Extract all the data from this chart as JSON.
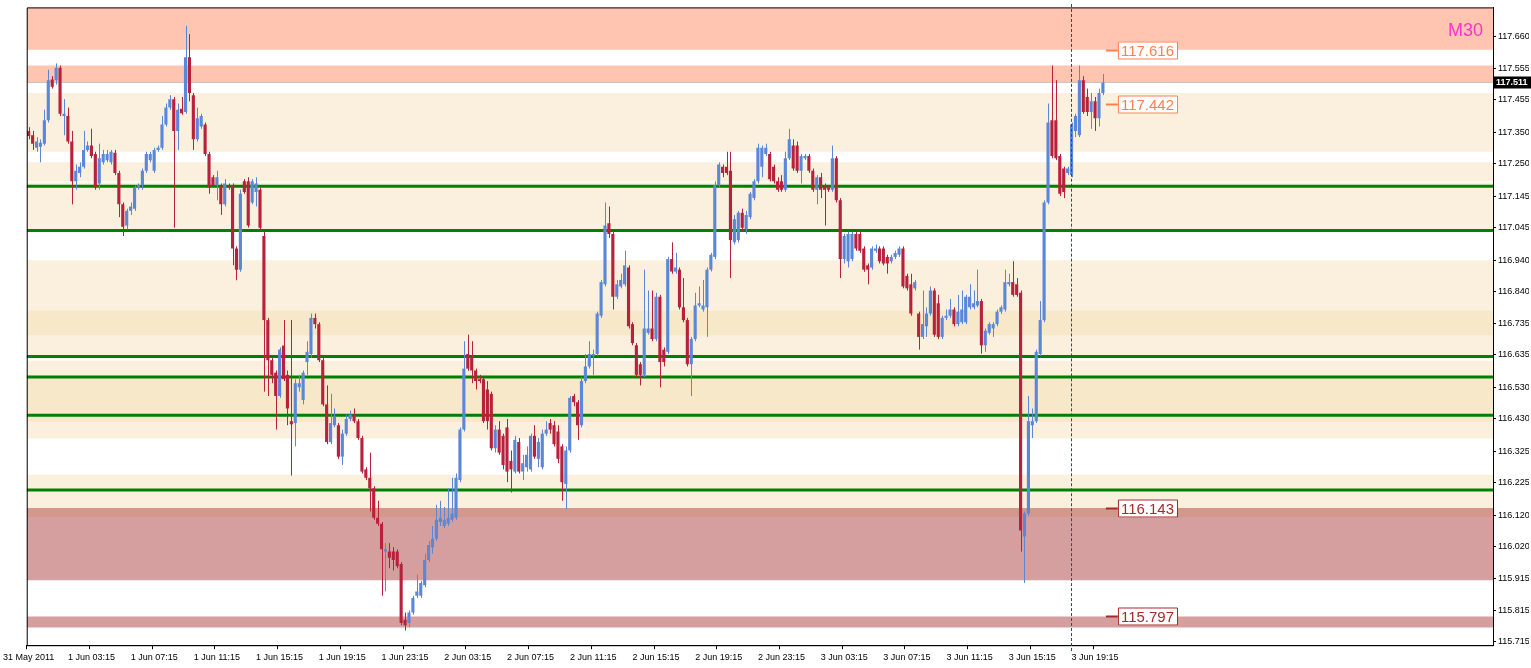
{
  "chart_data": {
    "type": "candlestick",
    "categories": [
      "31 May 2011",
      null,
      null,
      null,
      null,
      null,
      null,
      null,
      null,
      null,
      null,
      null,
      null,
      null,
      null,
      null,
      "1 Jun 03:15",
      null,
      null,
      null,
      null,
      null,
      null,
      null,
      null,
      null,
      null,
      null,
      null,
      null,
      null,
      null,
      "1 Jun 07:15",
      null,
      null,
      null,
      null,
      null,
      null,
      null,
      null,
      null,
      null,
      null,
      null,
      null,
      null,
      null,
      "1 Jun 11:15",
      null,
      null,
      null,
      null,
      null,
      null,
      null,
      null,
      null,
      null,
      null,
      null,
      null,
      null,
      null,
      "1 Jun 15:15",
      null,
      null,
      null,
      null,
      null,
      null,
      null,
      null,
      null,
      null,
      null,
      null,
      null,
      null,
      null,
      "1 Jun 19:15",
      null,
      null,
      null,
      null,
      null,
      null,
      null,
      null,
      null,
      null,
      null,
      null,
      null,
      null,
      null,
      "1 Jun 23:15",
      null,
      null,
      null,
      null,
      null,
      null,
      null,
      null,
      null,
      null,
      null,
      null,
      null,
      null,
      null,
      "2 Jun 03:15",
      null,
      null,
      null,
      null,
      null,
      null,
      null,
      null,
      null,
      null,
      null,
      null,
      null,
      null,
      null,
      "2 Jun 07:15",
      null,
      null,
      null,
      null,
      null,
      null,
      null,
      null,
      null,
      null,
      null,
      null,
      null,
      null,
      null,
      "2 Jun 11:15",
      null,
      null,
      null,
      null,
      null,
      null,
      null,
      null,
      null,
      null,
      null,
      null,
      null,
      null,
      null,
      "2 Jun 15:15",
      null,
      null,
      null,
      null,
      null,
      null,
      null,
      null,
      null,
      null,
      null,
      null,
      null,
      null,
      null,
      "2 Jun 19:15",
      null,
      null,
      null,
      null,
      null,
      null,
      null,
      null,
      null,
      null,
      null,
      null,
      null,
      null,
      null,
      "2 Jun 23:15",
      null,
      null,
      null,
      null,
      null,
      null,
      null,
      null,
      null,
      null,
      null,
      null,
      null,
      null,
      null,
      "3 Jun 03:15",
      null,
      null,
      null,
      null,
      null,
      null,
      null,
      null,
      null,
      null,
      null,
      null,
      null,
      null,
      null,
      "3 Jun 07:15",
      null,
      null,
      null,
      null,
      null,
      null,
      null,
      null,
      null,
      null,
      null,
      null,
      null,
      null,
      null,
      "3 Jun 11:15",
      null,
      null,
      null,
      null,
      null,
      null,
      null,
      null,
      null,
      null,
      null,
      null,
      null,
      null,
      null,
      "3 Jun 15:15",
      null,
      null,
      null,
      null,
      null,
      null,
      null,
      null,
      null,
      null,
      null,
      null,
      null,
      null,
      null,
      "3 Jun 19:15",
      null,
      null,
      null,
      null,
      null,
      null,
      null,
      null,
      null,
      null,
      null,
      null,
      null,
      null,
      null,
      null,
      null,
      null,
      null,
      null,
      null,
      null,
      null,
      null,
      null,
      null,
      null,
      null,
      null,
      null,
      null,
      null,
      null,
      null,
      null,
      null,
      null,
      null,
      null,
      null,
      null,
      null,
      null,
      null,
      null,
      null,
      null,
      null,
      null,
      null,
      null,
      null,
      null,
      null,
      null,
      null,
      null,
      null,
      null,
      null,
      null,
      null,
      null,
      null,
      null,
      null,
      null,
      null,
      null,
      null,
      null,
      null,
      null,
      null,
      null,
      null,
      null,
      null,
      null,
      null,
      null,
      null,
      null,
      null,
      null,
      null,
      null,
      null,
      null,
      null,
      null,
      null,
      null,
      null,
      null,
      null,
      null,
      null,
      null,
      null,
      null
    ],
    "ohlc": [
      [
        117.355,
        117.367,
        117.328,
        117.339
      ],
      [
        117.341,
        117.355,
        117.294,
        117.314
      ],
      [
        117.301,
        117.335,
        117.288,
        117.321
      ],
      [
        117.304,
        117.328,
        117.254,
        117.317
      ],
      [
        117.314,
        117.423,
        117.308,
        117.389
      ],
      [
        117.389,
        117.552,
        117.382,
        117.518
      ],
      [
        117.52,
        117.531,
        117.491,
        117.497
      ],
      [
        117.518,
        117.572,
        117.504,
        117.558
      ],
      [
        117.558,
        117.565,
        117.403,
        117.41
      ],
      [
        117.403,
        117.457,
        117.341,
        117.41
      ],
      [
        117.403,
        117.43,
        117.314,
        117.321
      ],
      [
        117.321,
        117.355,
        117.119,
        117.193
      ],
      [
        117.193,
        117.247,
        117.166,
        117.227
      ],
      [
        117.22,
        117.254,
        117.206,
        117.24
      ],
      [
        117.24,
        117.355,
        117.234,
        117.294
      ],
      [
        117.294,
        117.321,
        117.288,
        117.308
      ],
      [
        117.308,
        117.362,
        117.267,
        117.274
      ],
      [
        117.281,
        117.288,
        117.166,
        117.173
      ],
      [
        117.186,
        117.314,
        117.166,
        117.267
      ],
      [
        117.254,
        117.294,
        117.247,
        117.281
      ],
      [
        117.261,
        117.294,
        117.254,
        117.281
      ],
      [
        117.254,
        117.294,
        117.247,
        117.288
      ],
      [
        117.285,
        117.294,
        117.213,
        117.22
      ],
      [
        117.22,
        117.227,
        117.078,
        117.119
      ],
      [
        117.119,
        117.125,
        117.017,
        117.047
      ],
      [
        117.051,
        117.105,
        117.038,
        117.098
      ],
      [
        117.098,
        117.125,
        117.085,
        117.112
      ],
      [
        117.105,
        117.18,
        117.098,
        117.173
      ],
      [
        117.173,
        117.186,
        117.166,
        117.18
      ],
      [
        117.18,
        117.234,
        117.166,
        117.227
      ],
      [
        117.227,
        117.288,
        117.22,
        117.281
      ],
      [
        117.261,
        117.288,
        117.254,
        117.281
      ],
      [
        117.227,
        117.301,
        117.22,
        117.294
      ],
      [
        117.294,
        117.308,
        117.288,
        117.301
      ],
      [
        117.301,
        117.403,
        117.294,
        117.376
      ],
      [
        117.376,
        117.443,
        117.369,
        117.43
      ],
      [
        117.43,
        117.47,
        117.423,
        117.457
      ],
      [
        117.457,
        117.464,
        117.044,
        117.355
      ],
      [
        117.355,
        117.443,
        117.294,
        117.423
      ],
      [
        117.426,
        117.464,
        117.407,
        117.412
      ],
      [
        117.416,
        117.693,
        117.41,
        117.592
      ],
      [
        117.592,
        117.666,
        117.45,
        117.477
      ],
      [
        117.47,
        117.477,
        117.294,
        117.328
      ],
      [
        117.328,
        117.43,
        117.321,
        117.396
      ],
      [
        117.369,
        117.41,
        117.362,
        117.403
      ],
      [
        117.376,
        117.382,
        117.274,
        117.281
      ],
      [
        117.281,
        117.288,
        117.153,
        117.173
      ],
      [
        117.206,
        117.213,
        117.173,
        117.18
      ],
      [
        117.18,
        117.227,
        117.132,
        117.206
      ],
      [
        117.18,
        117.186,
        117.085,
        117.119
      ],
      [
        117.119,
        117.2,
        117.112,
        117.186
      ],
      [
        117.18,
        117.186,
        117.166,
        117.173
      ],
      [
        117.18,
        117.186,
        116.923,
        116.977
      ],
      [
        116.977,
        116.984,
        116.875,
        116.909
      ],
      [
        116.909,
        117.166,
        116.902,
        117.153
      ],
      [
        117.193,
        117.2,
        117.153,
        117.159
      ],
      [
        117.193,
        117.206,
        117.044,
        117.051
      ],
      [
        117.125,
        117.2,
        117.119,
        117.193
      ],
      [
        117.159,
        117.206,
        117.112,
        117.186
      ],
      [
        117.166,
        117.173,
        117.038,
        117.044
      ],
      [
        117.017,
        117.031,
        116.517,
        116.747
      ],
      [
        116.747,
        116.754,
        116.503,
        116.618
      ],
      [
        116.618,
        116.625,
        116.544,
        116.571
      ],
      [
        116.578,
        116.585,
        116.395,
        116.503
      ],
      [
        116.503,
        116.659,
        116.497,
        116.652
      ],
      [
        116.665,
        116.747,
        116.551,
        116.557
      ],
      [
        116.571,
        116.585,
        116.409,
        116.463
      ],
      [
        116.422,
        116.747,
        116.247,
        116.412
      ],
      [
        116.416,
        116.557,
        116.341,
        116.544
      ],
      [
        116.531,
        116.571,
        116.517,
        116.544
      ],
      [
        116.49,
        116.585,
        116.476,
        116.578
      ],
      [
        116.612,
        116.679,
        116.571,
        116.645
      ],
      [
        116.638,
        116.768,
        116.625,
        116.754
      ],
      [
        116.754,
        116.768,
        116.72,
        116.734
      ],
      [
        116.734,
        116.74,
        116.612,
        116.618
      ],
      [
        116.618,
        116.625,
        116.47,
        116.476
      ],
      [
        116.476,
        116.537,
        116.348,
        116.355
      ],
      [
        116.355,
        116.51,
        116.348,
        116.416
      ],
      [
        116.409,
        116.463,
        116.402,
        116.436
      ],
      [
        116.409,
        116.416,
        116.301,
        116.308
      ],
      [
        116.308,
        116.395,
        116.281,
        116.382
      ],
      [
        116.382,
        116.443,
        116.375,
        116.429
      ],
      [
        116.429,
        116.456,
        116.422,
        116.443
      ],
      [
        116.443,
        116.463,
        116.416,
        116.422
      ],
      [
        116.422,
        116.429,
        116.362,
        116.368
      ],
      [
        116.368,
        116.375,
        116.254,
        116.26
      ],
      [
        116.267,
        116.274,
        116.233,
        116.24
      ],
      [
        116.24,
        116.321,
        116.132,
        116.206
      ],
      [
        116.206,
        116.213,
        116.105,
        116.112
      ],
      [
        116.112,
        116.166,
        116.085,
        116.092
      ],
      [
        116.092,
        116.098,
        115.861,
        116.01
      ],
      [
        116.003,
        116.03,
        115.875,
        116.01
      ],
      [
        116.003,
        116.03,
        115.949,
        115.983
      ],
      [
        116.003,
        116.017,
        115.942,
        115.976
      ],
      [
        116.003,
        116.01,
        115.949,
        115.956
      ],
      [
        115.963,
        115.969,
        115.766,
        115.773
      ],
      [
        115.784,
        115.807,
        115.749,
        115.766
      ],
      [
        115.773,
        115.814,
        115.76,
        115.807
      ],
      [
        115.807,
        115.861,
        115.8,
        115.854
      ],
      [
        115.861,
        115.929,
        115.854,
        115.875
      ],
      [
        115.861,
        115.909,
        115.854,
        115.902
      ],
      [
        115.895,
        115.996,
        115.888,
        115.976
      ],
      [
        115.976,
        116.037,
        115.969,
        116.024
      ],
      [
        116.017,
        116.085,
        115.996,
        116.044
      ],
      [
        116.044,
        116.153,
        116.037,
        116.105
      ],
      [
        116.098,
        116.166,
        116.085,
        116.112
      ],
      [
        116.085,
        116.146,
        116.078,
        116.105
      ],
      [
        116.092,
        116.206,
        116.085,
        116.112
      ],
      [
        116.105,
        116.24,
        116.098,
        116.125
      ],
      [
        116.112,
        116.254,
        116.105,
        116.24
      ],
      [
        116.233,
        116.402,
        116.226,
        116.395
      ],
      [
        116.395,
        116.679,
        116.389,
        116.591
      ],
      [
        116.638,
        116.7,
        116.584,
        116.591
      ],
      [
        116.625,
        116.679,
        116.544,
        116.585
      ],
      [
        116.585,
        116.591,
        116.524,
        116.551
      ],
      [
        116.557,
        116.571,
        116.544,
        116.551
      ],
      [
        116.557,
        116.564,
        116.416,
        116.422
      ],
      [
        116.524,
        116.551,
        116.395,
        116.422
      ],
      [
        116.51,
        116.517,
        116.328,
        116.335
      ],
      [
        116.335,
        116.409,
        116.321,
        116.395
      ],
      [
        116.395,
        116.422,
        116.314,
        116.321
      ],
      [
        116.375,
        116.382,
        116.267,
        116.281
      ],
      [
        116.402,
        116.429,
        116.226,
        116.26
      ],
      [
        116.294,
        116.328,
        116.193,
        116.267
      ],
      [
        116.26,
        116.375,
        116.254,
        116.362
      ],
      [
        116.355,
        116.368,
        116.254,
        116.26
      ],
      [
        116.26,
        116.314,
        116.233,
        116.287
      ],
      [
        116.274,
        116.341,
        116.26,
        116.314
      ],
      [
        116.267,
        116.382,
        116.26,
        116.375
      ],
      [
        116.375,
        116.409,
        116.301,
        116.308
      ],
      [
        116.301,
        116.368,
        116.274,
        116.355
      ],
      [
        116.274,
        116.395,
        116.267,
        116.382
      ],
      [
        116.382,
        116.422,
        116.375,
        116.395
      ],
      [
        116.416,
        116.429,
        116.382,
        116.395
      ],
      [
        116.409,
        116.422,
        116.341,
        116.348
      ],
      [
        116.389,
        116.409,
        116.287,
        116.301
      ],
      [
        116.341,
        116.348,
        116.166,
        116.226
      ],
      [
        116.22,
        116.341,
        116.139,
        116.328
      ],
      [
        116.328,
        116.503,
        116.321,
        116.497
      ],
      [
        116.503,
        116.51,
        116.47,
        116.483
      ],
      [
        116.483,
        116.49,
        116.362,
        116.409
      ],
      [
        116.409,
        116.564,
        116.402,
        116.551
      ],
      [
        116.551,
        116.638,
        116.544,
        116.598
      ],
      [
        116.598,
        116.679,
        116.591,
        116.638
      ],
      [
        116.632,
        116.652,
        116.571,
        116.638
      ],
      [
        116.638,
        116.774,
        116.632,
        116.768
      ],
      [
        116.761,
        116.876,
        116.754,
        116.869
      ],
      [
        116.862,
        117.125,
        116.855,
        117.051
      ],
      [
        117.058,
        117.112,
        117.011,
        117.024
      ],
      [
        117.024,
        117.031,
        116.781,
        116.822
      ],
      [
        116.822,
        116.876,
        116.815,
        116.862
      ],
      [
        116.855,
        116.896,
        116.849,
        116.876
      ],
      [
        116.862,
        116.97,
        116.855,
        116.923
      ],
      [
        116.916,
        116.923,
        116.72,
        116.727
      ],
      [
        116.734,
        116.74,
        116.666,
        116.673
      ],
      [
        116.666,
        116.673,
        116.564,
        116.571
      ],
      [
        116.605,
        116.612,
        116.537,
        116.571
      ],
      [
        116.571,
        116.909,
        116.564,
        116.72
      ],
      [
        116.706,
        116.842,
        116.7,
        116.72
      ],
      [
        116.72,
        116.842,
        116.679,
        116.686
      ],
      [
        116.686,
        116.835,
        116.679,
        116.822
      ],
      [
        116.822,
        116.828,
        116.531,
        116.612
      ],
      [
        116.652,
        116.659,
        116.598,
        116.612
      ],
      [
        116.645,
        116.95,
        116.638,
        116.943
      ],
      [
        116.943,
        116.997,
        116.896,
        116.903
      ],
      [
        116.903,
        116.963,
        116.896,
        116.916
      ],
      [
        116.909,
        116.916,
        116.781,
        116.788
      ],
      [
        116.788,
        116.882,
        116.74,
        116.747
      ],
      [
        116.747,
        116.754,
        116.598,
        116.605
      ],
      [
        116.605,
        116.693,
        116.503,
        116.686
      ],
      [
        116.686,
        116.835,
        116.679,
        116.794
      ],
      [
        116.794,
        116.855,
        116.788,
        116.801
      ],
      [
        116.781,
        116.876,
        116.774,
        116.794
      ],
      [
        116.788,
        116.916,
        116.693,
        116.909
      ],
      [
        116.909,
        116.963,
        116.903,
        116.957
      ],
      [
        116.95,
        117.193,
        116.943,
        117.18
      ],
      [
        117.18,
        117.254,
        117.173,
        117.247
      ],
      [
        117.24,
        117.247,
        117.206,
        117.22
      ],
      [
        117.24,
        117.288,
        117.213,
        117.22
      ],
      [
        117.227,
        117.288,
        116.882,
        117.004
      ],
      [
        116.997,
        117.085,
        116.99,
        117.071
      ],
      [
        117.004,
        117.098,
        116.997,
        117.092
      ],
      [
        117.092,
        117.105,
        117.031,
        117.044
      ],
      [
        117.038,
        117.098,
        117.024,
        117.085
      ],
      [
        117.078,
        117.159,
        117.071,
        117.153
      ],
      [
        117.139,
        117.2,
        117.132,
        117.193
      ],
      [
        117.193,
        117.314,
        117.186,
        117.301
      ],
      [
        117.24,
        117.308,
        117.206,
        117.301
      ],
      [
        117.281,
        117.314,
        117.274,
        117.301
      ],
      [
        117.281,
        117.288,
        117.193,
        117.2
      ],
      [
        117.24,
        117.247,
        117.186,
        117.193
      ],
      [
        117.193,
        117.206,
        117.159,
        117.166
      ],
      [
        117.193,
        117.213,
        117.159,
        117.166
      ],
      [
        117.166,
        117.288,
        117.159,
        117.267
      ],
      [
        117.267,
        117.362,
        117.261,
        117.328
      ],
      [
        117.308,
        117.328,
        117.227,
        117.234
      ],
      [
        117.308,
        117.321,
        117.22,
        117.227
      ],
      [
        117.227,
        117.281,
        117.186,
        117.274
      ],
      [
        117.267,
        117.281,
        117.261,
        117.274
      ],
      [
        117.274,
        117.281,
        117.22,
        117.227
      ],
      [
        117.227,
        117.234,
        117.159,
        117.166
      ],
      [
        117.166,
        117.213,
        117.119,
        117.206
      ],
      [
        117.206,
        117.22,
        117.139,
        117.166
      ],
      [
        117.18,
        117.186,
        117.051,
        117.166
      ],
      [
        117.173,
        117.18,
        117.159,
        117.166
      ],
      [
        117.166,
        117.308,
        117.159,
        117.267
      ],
      [
        117.267,
        117.274,
        117.125,
        117.132
      ],
      [
        117.132,
        117.139,
        116.882,
        116.943
      ],
      [
        116.943,
        117.024,
        116.929,
        117.017
      ],
      [
        116.936,
        117.031,
        116.916,
        117.024
      ],
      [
        116.943,
        117.031,
        116.936,
        117.024
      ],
      [
        117.024,
        117.031,
        116.97,
        116.977
      ],
      [
        117.024,
        117.031,
        116.963,
        116.97
      ],
      [
        116.977,
        116.984,
        116.902,
        116.909
      ],
      [
        116.923,
        116.929,
        116.862,
        116.909
      ],
      [
        116.916,
        116.984,
        116.909,
        116.977
      ],
      [
        116.97,
        116.99,
        116.963,
        116.977
      ],
      [
        116.977,
        116.984,
        116.929,
        116.936
      ],
      [
        116.977,
        116.984,
        116.923,
        116.929
      ],
      [
        116.95,
        116.957,
        116.896,
        116.929
      ],
      [
        116.936,
        116.957,
        116.929,
        116.95
      ],
      [
        116.95,
        116.97,
        116.943,
        116.963
      ],
      [
        116.957,
        116.984,
        116.95,
        116.977
      ],
      [
        116.977,
        116.984,
        116.849,
        116.855
      ],
      [
        116.889,
        116.896,
        116.842,
        116.849
      ],
      [
        116.862,
        116.896,
        116.761,
        116.768
      ],
      [
        116.849,
        116.876,
        116.842,
        116.869
      ],
      [
        116.768,
        116.774,
        116.652,
        116.693
      ],
      [
        116.693,
        116.842,
        116.686,
        116.734
      ],
      [
        116.727,
        116.788,
        116.693,
        116.768
      ],
      [
        116.768,
        116.855,
        116.761,
        116.842
      ],
      [
        116.842,
        116.849,
        116.693,
        116.7
      ],
      [
        116.801,
        116.828,
        116.686,
        116.693
      ],
      [
        116.693,
        116.761,
        116.686,
        116.754
      ],
      [
        116.754,
        116.781,
        116.747,
        116.761
      ],
      [
        116.761,
        116.815,
        116.754,
        116.781
      ],
      [
        116.781,
        116.788,
        116.727,
        116.734
      ],
      [
        116.734,
        116.828,
        116.727,
        116.774
      ],
      [
        116.74,
        116.842,
        116.734,
        116.781
      ],
      [
        116.74,
        116.828,
        116.734,
        116.822
      ],
      [
        116.788,
        116.862,
        116.781,
        116.822
      ],
      [
        116.788,
        116.842,
        116.781,
        116.801
      ],
      [
        116.794,
        116.909,
        116.788,
        116.808
      ],
      [
        116.808,
        116.815,
        116.639,
        116.666
      ],
      [
        116.666,
        116.72,
        116.645,
        116.713
      ],
      [
        116.706,
        116.74,
        116.7,
        116.734
      ],
      [
        116.72,
        116.74,
        116.693,
        116.734
      ],
      [
        116.734,
        116.781,
        116.727,
        116.774
      ],
      [
        116.774,
        116.794,
        116.767,
        116.788
      ],
      [
        116.781,
        116.909,
        116.774,
        116.869
      ],
      [
        116.862,
        116.896,
        116.855,
        116.869
      ],
      [
        116.869,
        116.936,
        116.822,
        116.828
      ],
      [
        116.862,
        116.882,
        116.822,
        116.828
      ],
      [
        116.835,
        116.842,
        116.003,
        116.071
      ],
      [
        116.051,
        116.132,
        115.902,
        116.125
      ],
      [
        116.125,
        116.503,
        116.118,
        116.422
      ],
      [
        116.409,
        116.463,
        116.368,
        116.422
      ],
      [
        116.422,
        116.652,
        116.416,
        116.645
      ],
      [
        116.638,
        116.808,
        116.632,
        116.747
      ],
      [
        116.747,
        117.132,
        116.74,
        117.125
      ],
      [
        117.125,
        117.443,
        117.119,
        117.382
      ],
      [
        117.389,
        117.565,
        117.267,
        117.274
      ],
      [
        117.389,
        117.518,
        117.261,
        117.267
      ],
      [
        117.274,
        117.281,
        117.146,
        117.153
      ],
      [
        117.234,
        117.24,
        117.139,
        117.159
      ],
      [
        117.22,
        117.24,
        117.213,
        117.234
      ],
      [
        117.213,
        117.382,
        117.206,
        117.376
      ],
      [
        117.355,
        117.41,
        117.335,
        117.403
      ],
      [
        117.341,
        117.565,
        117.335,
        117.518
      ],
      [
        117.518,
        117.531,
        117.41,
        117.416
      ],
      [
        117.464,
        117.491,
        117.403,
        117.416
      ],
      [
        117.416,
        117.477,
        117.362,
        117.45
      ],
      [
        117.45,
        117.464,
        117.355,
        117.396
      ],
      [
        117.396,
        117.491,
        117.369,
        117.477
      ],
      [
        117.477,
        117.538,
        117.47,
        117.511
      ],
      null,
      null,
      null,
      null,
      null,
      null,
      null,
      null,
      null,
      null,
      null,
      null,
      null,
      null,
      null,
      null,
      null,
      null,
      null,
      null,
      null,
      null,
      null,
      null,
      null,
      null,
      null,
      null,
      null,
      null,
      null,
      null,
      null,
      null,
      null,
      null,
      null,
      null,
      null,
      null,
      null,
      null,
      null,
      null,
      null,
      null,
      null,
      null,
      null,
      null,
      null,
      null,
      null,
      null,
      null,
      null,
      null,
      null,
      null,
      null,
      null,
      null,
      null,
      null,
      null,
      null,
      null,
      null,
      null,
      null,
      null,
      null,
      null,
      null,
      null,
      null,
      null,
      null,
      null,
      null,
      null,
      null,
      null,
      null,
      null,
      null,
      null,
      null,
      null,
      null,
      null,
      null,
      null,
      null,
      null,
      null,
      null,
      null,
      null
    ],
    "colors": [
      "#b8213c",
      "#b8213c",
      "#5b87d9",
      "#5b87d9",
      "#5b87d9",
      "#5b87d9",
      "#b8213c",
      "#5b87d9",
      "#b8213c",
      "#5b87d9",
      "#b8213c",
      "#b8213c",
      "#5b87d9",
      "#5b87d9",
      "#5b87d9",
      "#5b87d9",
      "#b8213c",
      "#b8213c",
      "#5b87d9",
      "#5b87d9",
      "#5b87d9",
      "#5b87d9",
      "#b8213c",
      "#b8213c",
      "#b8213c",
      "#5b87d9",
      "#5b87d9",
      "#5b87d9",
      "#5b87d9",
      "#5b87d9",
      "#5b87d9",
      "#5b87d9",
      "#5b87d9",
      "#5b87d9",
      "#5b87d9",
      "#5b87d9",
      "#5b87d9",
      "#b8213c",
      "#5b87d9",
      "#b8213c",
      "#5b87d9",
      "#b8213c",
      "#b8213c",
      "#5b87d9",
      "#5b87d9",
      "#b8213c",
      "#b8213c",
      "#b8213c",
      "#5b87d9",
      "#b8213c",
      "#5b87d9",
      "#b8213c",
      "#b8213c",
      "#b8213c",
      "#5b87d9",
      "#b8213c",
      "#b8213c",
      "#5b87d9",
      "#5b87d9",
      "#b8213c",
      "#b8213c",
      "#b8213c",
      "#b8213c",
      "#b8213c",
      "#5b87d9",
      "#b8213c",
      "#b8213c",
      "#b8213c",
      "#5b87d9",
      "#5b87d9",
      "#5b87d9",
      "#5b87d9",
      "#5b87d9",
      "#b8213c",
      "#b8213c",
      "#b8213c",
      "#b8213c",
      "#5b87d9",
      "#5b87d9",
      "#b8213c",
      "#5b87d9",
      "#5b87d9",
      "#5b87d9",
      "#b8213c",
      "#b8213c",
      "#b8213c",
      "#b8213c",
      "#b8213c",
      "#b8213c",
      "#b8213c",
      "#b8213c",
      "#5b87d9",
      "#b8213c",
      "#b8213c",
      "#b8213c",
      "#b8213c",
      "#b8213c",
      "#5b87d9",
      "#5b87d9",
      "#5b87d9",
      "#5b87d9",
      "#5b87d9",
      "#5b87d9",
      "#5b87d9",
      "#5b87d9",
      "#5b87d9",
      "#5b87d9",
      "#5b87d9",
      "#5b87d9",
      "#5b87d9",
      "#5b87d9",
      "#5b87d9",
      "#b8213c",
      "#b8213c",
      "#b8213c",
      "#b8213c",
      "#b8213c",
      "#b8213c",
      "#b8213c",
      "#5b87d9",
      "#b8213c",
      "#b8213c",
      "#b8213c",
      "#b8213c",
      "#5b87d9",
      "#b8213c",
      "#5b87d9",
      "#5b87d9",
      "#5b87d9",
      "#b8213c",
      "#5b87d9",
      "#5b87d9",
      "#5b87d9",
      "#b8213c",
      "#b8213c",
      "#b8213c",
      "#b8213c",
      "#5b87d9",
      "#5b87d9",
      "#b8213c",
      "#b8213c",
      "#5b87d9",
      "#5b87d9",
      "#5b87d9",
      "#5b87d9",
      "#5b87d9",
      "#5b87d9",
      "#5b87d9",
      "#b8213c",
      "#b8213c",
      "#5b87d9",
      "#5b87d9",
      "#5b87d9",
      "#b8213c",
      "#b8213c",
      "#b8213c",
      "#b8213c",
      "#5b87d9",
      "#5b87d9",
      "#b8213c",
      "#5b87d9",
      "#b8213c",
      "#b8213c",
      "#5b87d9",
      "#b8213c",
      "#5b87d9",
      "#b8213c",
      "#b8213c",
      "#b8213c",
      "#5b87d9",
      "#5b87d9",
      "#5b87d9",
      "#5b87d9",
      "#5b87d9",
      "#5b87d9",
      "#5b87d9",
      "#5b87d9",
      "#b8213c",
      "#b8213c",
      "#b8213c",
      "#5b87d9",
      "#5b87d9",
      "#b8213c",
      "#5b87d9",
      "#5b87d9",
      "#5b87d9",
      "#5b87d9",
      "#5b87d9",
      "#5b87d9",
      "#b8213c",
      "#b8213c",
      "#b8213c",
      "#b8213c",
      "#5b87d9",
      "#5b87d9",
      "#b8213c",
      "#b8213c",
      "#5b87d9",
      "#5b87d9",
      "#b8213c",
      "#b8213c",
      "#5b87d9",
      "#b8213c",
      "#b8213c",
      "#b8213c",
      "#5b87d9",
      "#b8213c",
      "#b8213c",
      "#5b87d9",
      "#5b87d9",
      "#5b87d9",
      "#b8213c",
      "#b8213c",
      "#b8213c",
      "#b8213c",
      "#5b87d9",
      "#5b87d9",
      "#b8213c",
      "#b8213c",
      "#b8213c",
      "#5b87d9",
      "#5b87d9",
      "#5b87d9",
      "#b8213c",
      "#b8213c",
      "#b8213c",
      "#5b87d9",
      "#b8213c",
      "#5b87d9",
      "#5b87d9",
      "#5b87d9",
      "#b8213c",
      "#b8213c",
      "#5b87d9",
      "#5b87d9",
      "#5b87d9",
      "#b8213c",
      "#5b87d9",
      "#5b87d9",
      "#5b87d9",
      "#5b87d9",
      "#5b87d9",
      "#5b87d9",
      "#b8213c",
      "#5b87d9",
      "#5b87d9",
      "#5b87d9",
      "#5b87d9",
      "#5b87d9",
      "#5b87d9",
      "#5b87d9",
      "#b8213c",
      "#b8213c",
      "#b8213c",
      "#5b87d9",
      "#5b87d9",
      "#5b87d9",
      "#5b87d9",
      "#5b87d9",
      "#5b87d9",
      "#5b87d9",
      "#b8213c",
      "#b8213c",
      "#b8213c",
      "#b8213c",
      "#5b87d9",
      "#5b87d9",
      "#5b87d9",
      "#5b87d9",
      "#b8213c",
      "#b8213c",
      "#5b87d9",
      "#b8213c",
      "#5b87d9",
      "#5b87d9",
      null,
      null,
      null,
      null,
      null,
      null,
      null,
      null,
      null,
      null,
      null,
      null,
      null,
      null,
      null,
      null,
      null,
      null,
      null,
      null,
      null,
      null,
      null,
      null,
      null,
      null,
      null,
      null,
      null,
      null,
      null,
      null,
      null,
      null,
      null,
      null,
      null,
      null,
      null,
      null,
      null,
      null,
      null,
      null,
      null,
      null,
      null,
      null,
      null,
      null,
      null,
      null,
      null,
      null,
      null,
      null,
      null,
      null,
      null,
      null,
      null,
      null,
      null,
      null,
      null,
      null,
      null,
      null,
      null,
      null,
      null,
      null,
      null,
      null,
      null,
      null,
      null,
      null,
      null,
      null,
      null,
      null,
      null,
      null,
      null,
      null,
      null,
      null,
      null,
      null,
      null,
      null,
      null,
      null,
      null,
      null,
      null,
      null,
      null
    ],
    "ylim": [
      115.702,
      117.752
    ],
    "yticks": [
      {
        "value": 117.66,
        "label": "117.660"
      },
      117.555,
      117.455,
      {
        "value": 117.35,
        "label": "117.350"
      },
      {
        "value": 117.25,
        "label": "117.250"
      },
      117.145,
      117.045,
      {
        "value": 116.94,
        "label": "116.940"
      },
      {
        "value": 116.84,
        "label": "116.840"
      },
      116.735,
      116.635,
      {
        "value": 116.53,
        "label": "116.530"
      },
      {
        "value": 116.43,
        "label": "116.430"
      },
      116.325,
      116.225,
      {
        "value": 116.12,
        "label": "116.120"
      },
      {
        "value": 116.02,
        "label": "116.020"
      },
      115.915,
      115.815,
      115.715
    ],
    "bands": [
      {
        "axis": "y",
        "from": 117.288,
        "to": 117.477,
        "color": "#f5deb3"
      },
      {
        "axis": "y",
        "from": 117.193,
        "to": 117.254,
        "color": "#f5deb3"
      },
      {
        "axis": "y",
        "from": 117.04,
        "to": 117.189,
        "color": "#f5deb3"
      },
      {
        "axis": "y",
        "from": 116.698,
        "to": 116.939,
        "color": "#f5deb3"
      },
      {
        "axis": "y",
        "from": 116.625,
        "to": 116.777,
        "color": "#f5deb3"
      },
      {
        "axis": "y",
        "from": 116.42,
        "to": 116.616,
        "color": "#f5deb3"
      },
      {
        "axis": "y",
        "from": 116.366,
        "to": 116.568,
        "color": "#f5deb3"
      },
      {
        "axis": "y",
        "from": 116.114,
        "to": 116.25,
        "color": "#f5deb3"
      },
      {
        "axis": "y",
        "from": 117.616,
        "to": 117.752,
        "color": "#ff7f50"
      },
      {
        "axis": "y",
        "from": 117.511,
        "to": 117.565,
        "color": "#ff7f50"
      },
      {
        "axis": "y",
        "from": 115.911,
        "to": 116.143,
        "color": "#a52a2a"
      },
      {
        "axis": "y",
        "from": 115.759,
        "to": 115.794,
        "color": "#a52a2a"
      }
    ],
    "ref_lines": [
      {
        "axis": "y",
        "value": 117.177,
        "color": "#008000",
        "line_style": "solid"
      },
      {
        "axis": "y",
        "value": 117.035,
        "color": "#008000",
        "line_style": "solid"
      },
      {
        "axis": "y",
        "value": 116.63,
        "color": "#008000",
        "line_style": "solid"
      },
      {
        "axis": "y",
        "value": 116.564,
        "color": "#008000",
        "line_style": "solid"
      },
      {
        "axis": "y",
        "value": 116.441,
        "color": "#008000",
        "line_style": "solid"
      },
      {
        "axis": "y",
        "value": 116.201,
        "color": "#008000",
        "line_style": "solid"
      },
      {
        "axis": "y",
        "value": 117.511,
        "label": "117.511",
        "color": "#c0c0c0",
        "line_style": "solid"
      },
      {
        "axis": "y",
        "value": 117.616,
        "label": "117.616",
        "color": "#ff7f50"
      },
      {
        "axis": "y",
        "value": 117.442,
        "label": "117.442",
        "color": "#ff7f50"
      },
      {
        "axis": "y",
        "value": 116.143,
        "label": "116.143",
        "color": "#a52a2a"
      },
      {
        "axis": "y",
        "value": 115.797,
        "label": "115.797",
        "color": "#a52a2a"
      }
    ],
    "annotations": [
      "M30"
    ]
  }
}
